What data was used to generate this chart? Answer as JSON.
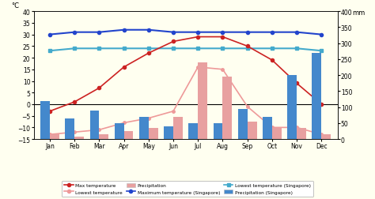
{
  "months": [
    "Jan",
    "Feb",
    "Mar",
    "Apr",
    "May",
    "Jun",
    "Jul",
    "Aug",
    "Sep",
    "Oct",
    "Nov",
    "Dec"
  ],
  "pyongyang_max_temp": [
    -3,
    1,
    7,
    16,
    22,
    27,
    29,
    29,
    25,
    19,
    9,
    0
  ],
  "pyongyang_min_temp": [
    -13,
    -12,
    -11,
    -8,
    -6,
    -3,
    16,
    15,
    -1,
    -10,
    -10,
    -13
  ],
  "pyongyang_precip_mm": [
    15,
    8,
    15,
    25,
    35,
    70,
    240,
    195,
    55,
    35,
    35,
    15
  ],
  "singapore_max_temp": [
    30,
    31,
    31,
    32,
    32,
    31,
    31,
    31,
    31,
    31,
    31,
    30
  ],
  "singapore_min_temp": [
    23,
    24,
    24,
    24,
    24,
    24,
    24,
    24,
    24,
    24,
    24,
    23
  ],
  "singapore_precip_mm": [
    120,
    65,
    90,
    50,
    70,
    40,
    50,
    50,
    95,
    70,
    200,
    270
  ],
  "background_color": "#fffff0",
  "bar_color_pyongyang": "#e8a0a0",
  "bar_color_singapore": "#4488cc",
  "line_color_pyongyang_max": "#cc2222",
  "line_color_pyongyang_min": "#ee9999",
  "line_color_singapore_max": "#2244cc",
  "line_color_singapore_min": "#44aacc",
  "temp_ylim": [
    -15,
    40
  ],
  "precip_ylim": [
    0,
    400
  ],
  "left_ticks": [
    -15,
    -10,
    -5,
    0,
    5,
    10,
    15,
    20,
    25,
    30,
    35,
    40
  ],
  "right_ticks": [
    0,
    50,
    100,
    150,
    200,
    250,
    300,
    350,
    400
  ]
}
